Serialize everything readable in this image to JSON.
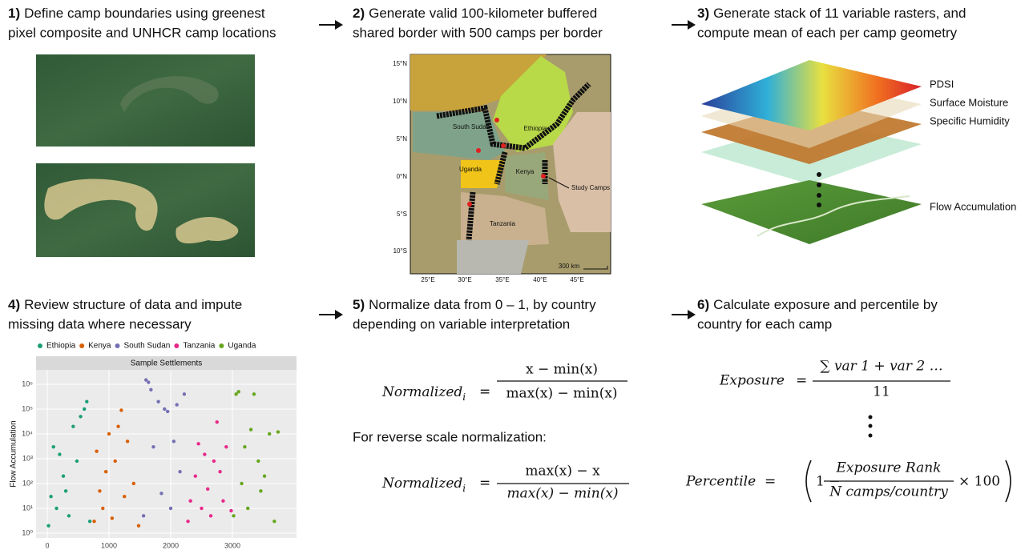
{
  "steps": [
    {
      "number": "1)",
      "lines": [
        "Define camp boundaries using greenest",
        "pixel composite and UNHCR camp locations"
      ]
    },
    {
      "number": "2)",
      "lines": [
        "Generate valid 100-kilometer buffered",
        "shared border with 500 camps per border"
      ]
    },
    {
      "number": "3)",
      "lines": [
        "Generate stack of 11 variable rasters, and",
        "compute mean of each per camp geometry"
      ]
    },
    {
      "number": "4)",
      "lines": [
        "Review structure of data and impute",
        "missing data where necessary"
      ]
    },
    {
      "number": "5)",
      "lines": [
        "Normalize data from 0 – 1, by country",
        "depending on variable interpretation"
      ]
    },
    {
      "number": "6)",
      "lines": [
        "Calculate exposure and percentile by",
        "country for each camp"
      ]
    }
  ],
  "map": {
    "labels": [
      "South Sudan",
      "Ethiopia",
      "Uganda",
      "Kenya",
      "Tanzania",
      "Study Camps"
    ],
    "lat": [
      "15°N",
      "10°N",
      "5°N",
      "0°N",
      "5°S",
      "10°S"
    ],
    "lon": [
      "25°E",
      "30°E",
      "35°E",
      "40°E",
      "45°E"
    ],
    "scale": "300 km"
  },
  "rasters": {
    "layers": [
      "PDSI",
      "Surface Moisture",
      "Specific Humidity",
      "Flow Accumulation"
    ]
  },
  "chart_data": {
    "type": "scatter",
    "title": "Sample Settlements",
    "y_label": "Flow Accumulation",
    "log_y": true,
    "xlim": [
      -182,
      4039
    ],
    "ylim": [
      0.64,
      3800000
    ],
    "xticks": [
      0,
      1000,
      2000,
      3000
    ],
    "yticks": [
      {
        "value": 1,
        "label": "10⁰"
      },
      {
        "value": 10,
        "label": "10¹"
      },
      {
        "value": 100,
        "label": "10²"
      },
      {
        "value": 1000,
        "label": "10³"
      },
      {
        "value": 10000,
        "label": "10⁴"
      },
      {
        "value": 100000,
        "label": "10⁵"
      },
      {
        "value": 1000000,
        "label": "10⁶"
      }
    ],
    "series": [
      {
        "name": "Ethiopia",
        "color": "#1b9e77",
        "x": [
          20,
          60,
          100,
          150,
          200,
          260,
          300,
          350,
          420,
          480,
          540,
          600,
          640,
          690
        ],
        "values": [
          2,
          30,
          3000,
          10,
          1500,
          200,
          50,
          5,
          20000,
          800,
          50000,
          100000,
          200000,
          3
        ]
      },
      {
        "name": "Kenya",
        "color": "#d95f02",
        "x": [
          760,
          800,
          850,
          900,
          950,
          1000,
          1050,
          1100,
          1150,
          1200,
          1250,
          1300,
          1400,
          1480
        ],
        "values": [
          3,
          2000,
          50,
          10,
          300,
          10000,
          4,
          800,
          20000,
          90000,
          30,
          5000,
          100,
          2
        ]
      },
      {
        "name": "South Sudan",
        "color": "#7570b3",
        "x": [
          1560,
          1600,
          1640,
          1680,
          1720,
          1800,
          1850,
          1900,
          1950,
          2000,
          2050,
          2100,
          2150,
          2220
        ],
        "values": [
          5,
          1500000,
          1200000,
          600000,
          3000,
          200000,
          40,
          100000,
          80000,
          10,
          5000,
          150000,
          300,
          400000
        ]
      },
      {
        "name": "Tanzania",
        "color": "#e7298a",
        "x": [
          2280,
          2320,
          2400,
          2450,
          2500,
          2550,
          2600,
          2650,
          2700,
          2750,
          2800,
          2850,
          2900,
          2980
        ],
        "values": [
          3,
          20,
          200,
          4000,
          10,
          1500,
          60,
          5,
          800,
          30000,
          300,
          20,
          3000,
          8
        ]
      },
      {
        "name": "Uganda",
        "color": "#66a61e",
        "x": [
          3020,
          3060,
          3100,
          3150,
          3200,
          3250,
          3300,
          3350,
          3420,
          3460,
          3520,
          3600,
          3680,
          3740
        ],
        "values": [
          5,
          400000,
          500000,
          100,
          3000,
          10,
          15000,
          400000,
          800,
          50,
          200,
          10000,
          3,
          12000
        ]
      }
    ]
  },
  "formulas": {
    "normalized": {
      "name": "Normalized",
      "sub": "i",
      "eq": "=",
      "numerator": "x − min(x)",
      "denominator": "max(x) −  min(x)"
    },
    "reverse_note": "For reverse scale normalization:",
    "reverse": {
      "name": "Normalized",
      "sub": "i",
      "eq": "=",
      "numerator": "max(x)  − x",
      "denominator": "max(x) −  min(x)"
    },
    "exposure": {
      "name": "Exposure",
      "eq": "=",
      "numerator": "∑ var 1 + var 2 …",
      "denominator": "11"
    },
    "percentile": {
      "name": "Percentile",
      "eq": "=",
      "open": "1 −",
      "numerator": "Exposure Rank",
      "denominator": "N camps/country",
      "close": "× 100"
    }
  }
}
